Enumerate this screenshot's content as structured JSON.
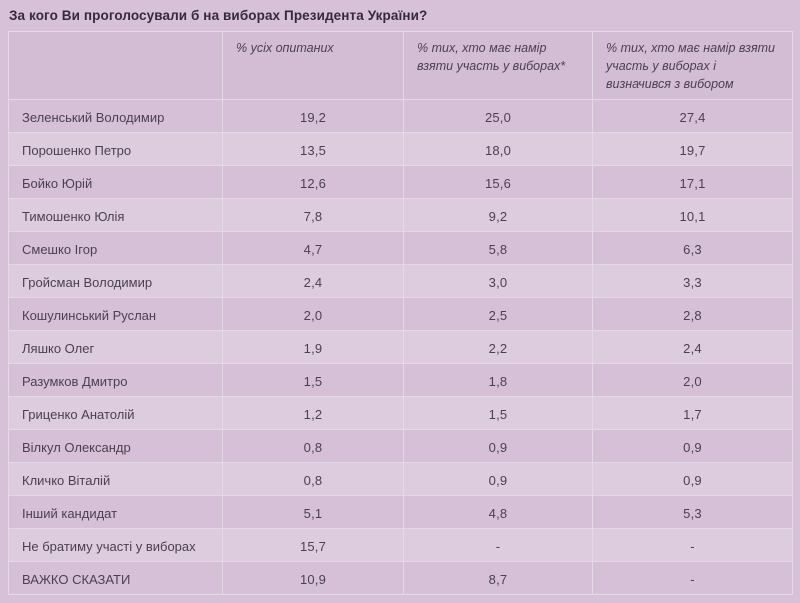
{
  "page": {
    "title": "За кого Ви проголосували б на виборах Президента України?"
  },
  "colors": {
    "page_bg": "#d6c1d8",
    "header_bg": "#d3bdd5",
    "row_odd_bg": "#d6c0d8",
    "row_even_bg": "#ddcbde",
    "border": "#e5d9e7",
    "text": "#4b4051",
    "title_text": "#352a3c"
  },
  "chart_data": {
    "type": "table",
    "title": "За кого Ви проголосували б на виборах Президента України?",
    "decimal_separator": ",",
    "columns": [
      "",
      "% усіх опитаних",
      "% тих, хто має намір взяти участь у виборах*",
      "% тих, хто має намір взяти участь у виборах і визначився з вибором"
    ],
    "rows": [
      [
        "Зеленський Володимир",
        "19,2",
        "25,0",
        "27,4"
      ],
      [
        "Порошенко Петро",
        "13,5",
        "18,0",
        "19,7"
      ],
      [
        "Бойко Юрій",
        "12,6",
        "15,6",
        "17,1"
      ],
      [
        "Тимошенко Юлія",
        "7,8",
        "9,2",
        "10,1"
      ],
      [
        "Смешко Ігор",
        "4,7",
        "5,8",
        "6,3"
      ],
      [
        "Гройсман Володимир",
        "2,4",
        "3,0",
        "3,3"
      ],
      [
        "Кошулинський Руслан",
        "2,0",
        "2,5",
        "2,8"
      ],
      [
        "Ляшко Олег",
        "1,9",
        "2,2",
        "2,4"
      ],
      [
        "Разумков Дмитро",
        "1,5",
        "1,8",
        "2,0"
      ],
      [
        "Гриценко Анатолій",
        "1,2",
        "1,5",
        "1,7"
      ],
      [
        "Вілкул Олександр",
        "0,8",
        "0,9",
        "0,9"
      ],
      [
        "Кличко Віталій",
        "0,8",
        "0,9",
        "0,9"
      ],
      [
        "Інший кандидат",
        "5,1",
        "4,8",
        "5,3"
      ],
      [
        "Не братиму участі у виборах",
        "15,7",
        "-",
        "-"
      ],
      [
        "ВАЖКО СКАЗАТИ",
        "10,9",
        "8,7",
        "-"
      ]
    ]
  }
}
